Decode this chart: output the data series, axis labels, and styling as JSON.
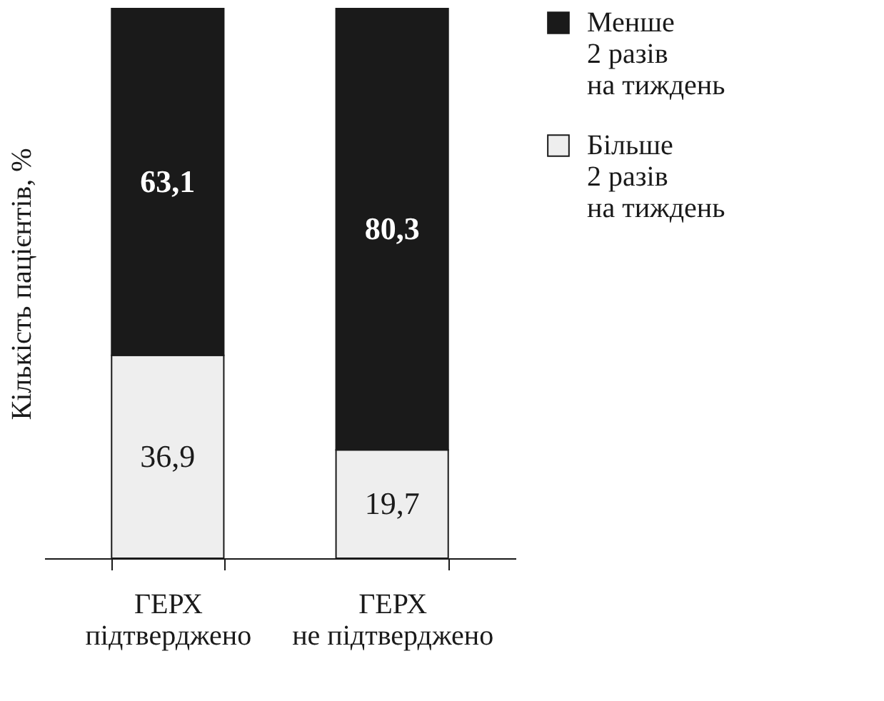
{
  "chart_data": {
    "type": "bar",
    "stacked": true,
    "ylabel": "Кількість пацієнтів, %",
    "categories": [
      "ГЕРХ\nпідтверджено",
      "ГЕРХ\nне підтверджено"
    ],
    "series": [
      {
        "name": "Більше\n2 разів\nна тиждень",
        "color": "#eeeeee",
        "values": [
          36.9,
          19.7
        ],
        "value_labels": [
          "36,9",
          "19,7"
        ]
      },
      {
        "name": "Менше\n2 разів\nна тиждень",
        "color": "#1a1a1a",
        "values": [
          63.1,
          80.3
        ],
        "value_labels": [
          "63,1",
          "80,3"
        ]
      }
    ],
    "ylim": [
      0,
      100
    ],
    "tick_labels": "x",
    "grid": false,
    "legend": "right"
  }
}
